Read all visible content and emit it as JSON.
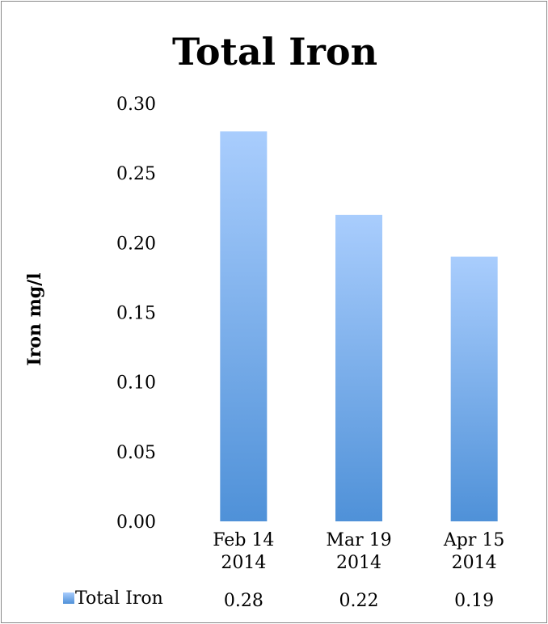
{
  "chart_data": {
    "type": "bar",
    "title": "Total Iron",
    "ylabel": "Iron mg/l",
    "xlabel": "",
    "categories": [
      [
        "Feb 14",
        "2014"
      ],
      [
        "Mar 19",
        "2014"
      ],
      [
        "Apr 15",
        "2014"
      ]
    ],
    "series": [
      {
        "name": "Total Iron",
        "values": [
          0.28,
          0.22,
          0.19
        ]
      }
    ],
    "value_labels": [
      "0.28",
      "0.22",
      "0.19"
    ],
    "ylim": [
      0,
      0.3
    ],
    "yticks": [
      "0.00",
      "0.05",
      "0.10",
      "0.15",
      "0.20",
      "0.25",
      "0.30"
    ],
    "grid": false,
    "legend": "bottom-left data table",
    "colors": {
      "bar_top": "#a9cdfd",
      "bar_bottom": "#4f91d8"
    }
  }
}
